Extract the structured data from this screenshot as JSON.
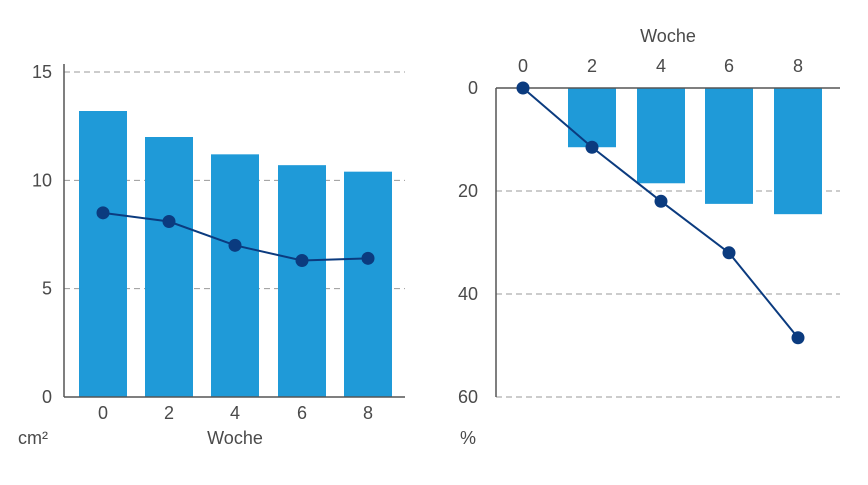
{
  "colors": {
    "bar": "#1f9ad8",
    "line": "#0b3b7f",
    "axis": "#555555",
    "grid": "#999999",
    "text": "#4a4a4a"
  },
  "chart_data": [
    {
      "type": "bar",
      "categories": [
        "0",
        "2",
        "4",
        "6",
        "8"
      ],
      "series": [
        {
          "type": "bar",
          "values": [
            13.2,
            12.0,
            11.2,
            10.7,
            10.4
          ]
        },
        {
          "type": "line",
          "values": [
            8.5,
            8.1,
            7.0,
            6.3,
            6.4
          ]
        }
      ],
      "xlabel": "Woche",
      "unit": "cm²",
      "ylim": [
        0,
        15
      ],
      "yticks": [
        0,
        5,
        10,
        15
      ],
      "grid": true
    },
    {
      "type": "bar",
      "categories": [
        "0",
        "2",
        "4",
        "6",
        "8"
      ],
      "series": [
        {
          "type": "bar",
          "values": [
            0,
            11.5,
            18.5,
            22.5,
            24.5
          ]
        },
        {
          "type": "line",
          "values": [
            0,
            11.5,
            22.0,
            32.0,
            48.5
          ]
        }
      ],
      "xlabel": "Woche",
      "xaxis_position": "top",
      "yaxis_inverted": true,
      "unit": "%",
      "ylim": [
        0,
        60
      ],
      "yticks": [
        0,
        20,
        40,
        60
      ],
      "grid": true
    }
  ]
}
